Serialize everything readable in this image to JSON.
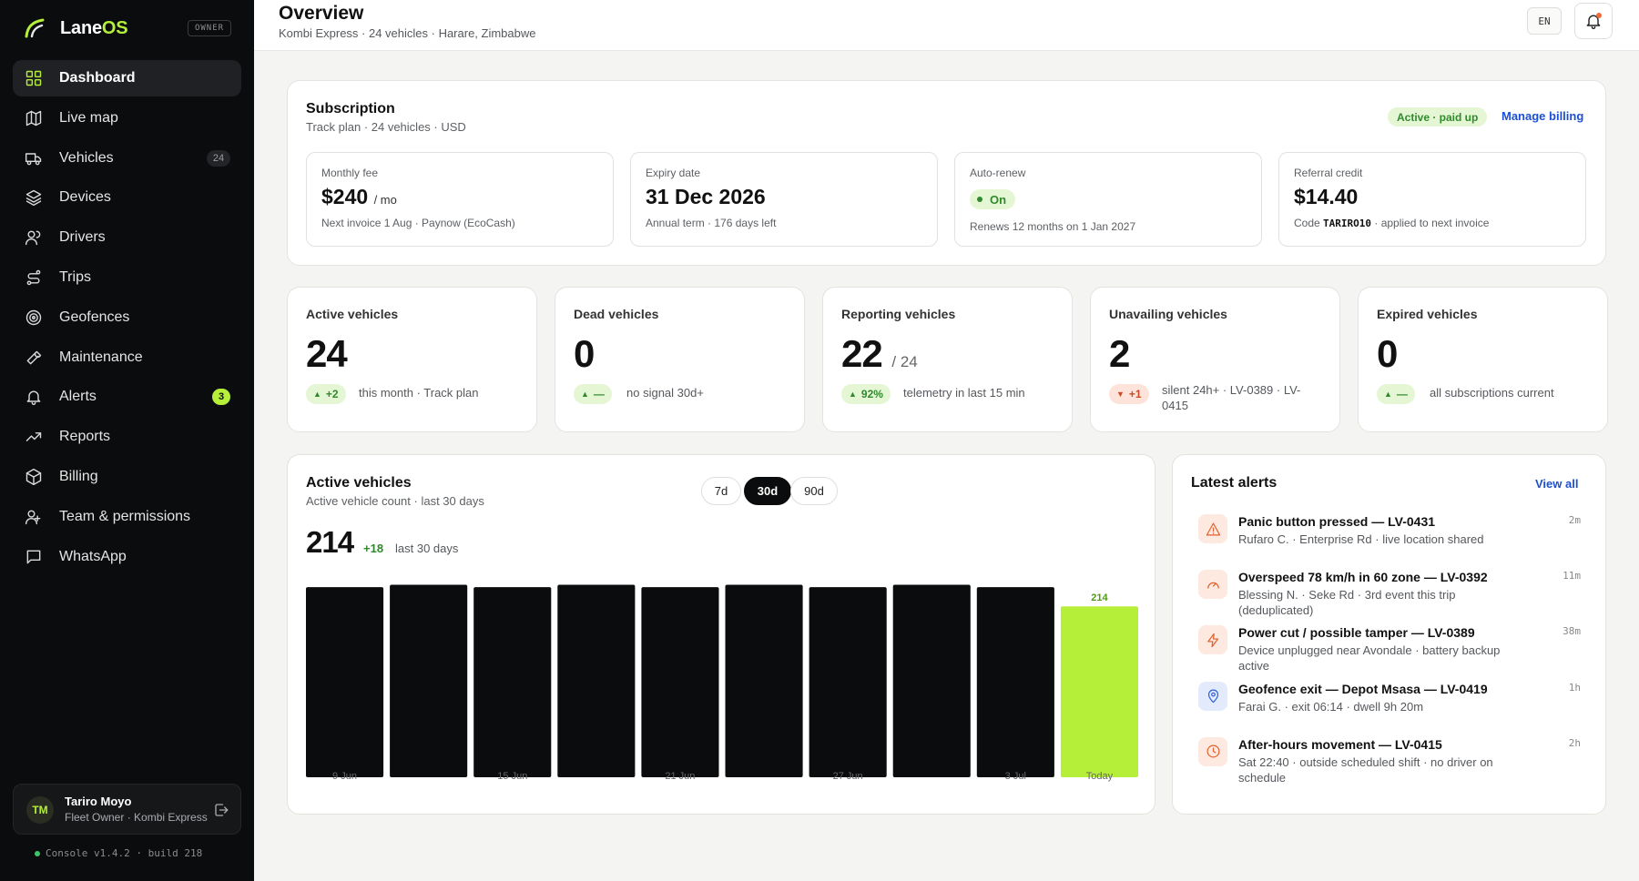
{
  "brand": {
    "name_main": "Lane",
    "name_accent": "OS",
    "role": "OWNER"
  },
  "nav": [
    {
      "label": "Dashboard",
      "icon": "grid-icon",
      "active": true
    },
    {
      "label": "Live map",
      "icon": "map-icon"
    },
    {
      "label": "Vehicles",
      "icon": "truck-icon",
      "count": "24"
    },
    {
      "label": "Devices",
      "icon": "layers-icon"
    },
    {
      "label": "Drivers",
      "icon": "users-icon"
    },
    {
      "label": "Trips",
      "icon": "route-icon"
    },
    {
      "label": "Geofences",
      "icon": "target-icon"
    },
    {
      "label": "Maintenance",
      "icon": "wrench-icon"
    },
    {
      "label": "Alerts",
      "icon": "bell-icon",
      "count": "3"
    },
    {
      "label": "Reports",
      "icon": "trending-icon"
    },
    {
      "label": "Billing",
      "icon": "package-icon"
    },
    {
      "label": "Team & permissions",
      "icon": "team-icon"
    },
    {
      "label": "WhatsApp",
      "icon": "chat-icon"
    }
  ],
  "user": {
    "initials": "TM",
    "name": "Tariro Moyo",
    "role": "Fleet Owner · Kombi Express"
  },
  "version": "Console v1.4.2 · build 218",
  "header": {
    "title": "Overview",
    "subtitle": "Kombi Express · 24 vehicles · Harare, Zimbabwe",
    "lang": "EN"
  },
  "subscription": {
    "title": "Subscription",
    "desc": "Track plan · 24 vehicles · USD",
    "status": "Active · paid up",
    "manage": "Manage billing",
    "monthly": {
      "label": "Monthly fee",
      "value": "$240",
      "unit": "/ mo",
      "note": "Next invoice 1 Aug · Paynow (EcoCash)"
    },
    "expiry": {
      "label": "Expiry date",
      "value": "31 Dec 2026",
      "note": "Annual term · 176 days left"
    },
    "autorenew": {
      "label": "Auto-renew",
      "value": "On",
      "note": "Renews 12 months on 1 Jan 2027"
    },
    "referral": {
      "label": "Referral credit",
      "value": "$14.40",
      "note_pre": "Code",
      "code": "TARIRO10",
      "note_post": "· applied to next invoice"
    }
  },
  "stats": [
    {
      "label": "Active vehicles",
      "value": "24",
      "delta": "+2",
      "dir": "up",
      "note": "this month · Track plan"
    },
    {
      "label": "Dead vehicles",
      "value": "0",
      "delta": "—",
      "dir": "up",
      "note": "no signal 30d+"
    },
    {
      "label": "Reporting vehicles",
      "value": "22",
      "of": "/ 24",
      "delta": "92%",
      "dir": "up",
      "note": "telemetry in last 15 min"
    },
    {
      "label": "Unavailing vehicles",
      "value": "2",
      "delta": "+1",
      "dir": "down",
      "note": "silent 24h+ · LV-0389 · LV-0415"
    },
    {
      "label": "Expired vehicles",
      "value": "0",
      "delta": "—",
      "dir": "up",
      "note": "all subscriptions current"
    }
  ],
  "chart": {
    "title": "Active vehicles",
    "subtitle": "Active vehicle count · last 30 days",
    "ranges": [
      "7d",
      "30d",
      "90d"
    ],
    "active_range": "30d",
    "total": "214",
    "delta": "+18",
    "delta_note": "last 30 days",
    "accent": "#b6ef3a",
    "bar_color": "#0b0c0d"
  },
  "chart_data": {
    "type": "bar",
    "categories": [
      "9 Jun",
      "",
      "15 Jun",
      "",
      "21 Jun",
      "",
      "27 Jun",
      "",
      "3 Jul",
      "Today"
    ],
    "values": [
      238,
      241,
      238,
      241,
      238,
      241,
      238,
      241,
      238,
      214
    ],
    "ylim": [
      0,
      245
    ],
    "highlight_label": "214"
  },
  "alerts": {
    "title": "Latest alerts",
    "view_all": "View all",
    "items": [
      {
        "title": "Panic button pressed — LV-0431",
        "desc": "Rufaro C. · Enterprise Rd · live location shared",
        "time": "2m",
        "icon": "warning-icon",
        "tone": "orange"
      },
      {
        "title": "Overspeed 78 km/h in 60 zone — LV-0392",
        "desc": "Blessing N. · Seke Rd · 3rd event this trip (deduplicated)",
        "time": "11m",
        "icon": "gauge-icon",
        "tone": "orange"
      },
      {
        "title": "Power cut / possible tamper — LV-0389",
        "desc": "Device unplugged near Avondale · battery backup active",
        "time": "38m",
        "icon": "bolt-icon",
        "tone": "orange"
      },
      {
        "title": "Geofence exit — Depot Msasa — LV-0419",
        "desc": "Farai G. · exit 06:14 · dwell 9h 20m",
        "time": "1h",
        "icon": "pin-icon",
        "tone": "blue"
      },
      {
        "title": "After-hours movement — LV-0415",
        "desc": "Sat 22:40 · outside scheduled shift · no driver on schedule",
        "time": "2h",
        "icon": "clock-icon",
        "tone": "orange"
      }
    ]
  }
}
